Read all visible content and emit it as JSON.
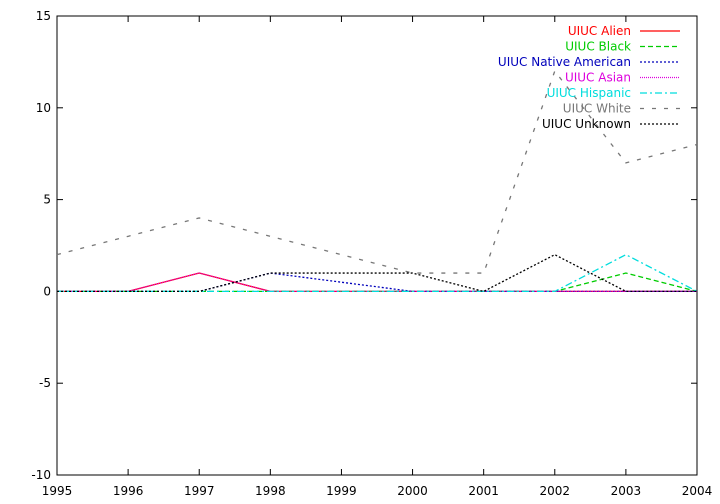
{
  "chart_data": {
    "type": "line",
    "x": [
      1995,
      1996,
      1997,
      1998,
      1999,
      2000,
      2001,
      2002,
      2003,
      2004
    ],
    "xlim": [
      1995,
      2004
    ],
    "ylim": [
      -10,
      15
    ],
    "xticks": [
      "1995",
      "1996",
      "1997",
      "1998",
      "1999",
      "2000",
      "2001",
      "2002",
      "2003",
      "2004"
    ],
    "yticks": [
      "-10",
      "-5",
      "0",
      "5",
      "10",
      "15"
    ],
    "grid": false,
    "legend_position": "top-right",
    "series": [
      {
        "name": "UIUC Alien",
        "color": "#ff0000",
        "dash": "solid",
        "values": [
          0,
          0,
          1,
          0,
          0,
          0,
          0,
          0,
          0,
          0
        ]
      },
      {
        "name": "UIUC Black",
        "color": "#00cc00",
        "dash": "dashed",
        "values": [
          0,
          0,
          0,
          0,
          0,
          0,
          0,
          0,
          1,
          0
        ]
      },
      {
        "name": "UIUC Native American",
        "color": "#0000bb",
        "dash": "dotted",
        "values": [
          0,
          0,
          0,
          1,
          0.5,
          0,
          0,
          0,
          0,
          0
        ]
      },
      {
        "name": "UIUC Asian",
        "color": "#dd00dd",
        "dash": "dotted-fine",
        "values": [
          0,
          0,
          1,
          0,
          0,
          0,
          0,
          0,
          0,
          0
        ]
      },
      {
        "name": "UIUC Hispanic",
        "color": "#00dddd",
        "dash": "dash-dot",
        "values": [
          0,
          0,
          0,
          0,
          0,
          0,
          0,
          0,
          2,
          0
        ]
      },
      {
        "name": "UIUC White",
        "color": "#777777",
        "dash": "sparse-dash",
        "values": [
          2,
          3,
          4,
          3,
          2,
          1,
          1,
          12,
          7,
          8
        ]
      },
      {
        "name": "UIUC Unknown",
        "color": "#000000",
        "dash": "dotted",
        "values": [
          0,
          0,
          0,
          1,
          1,
          1,
          0,
          2,
          0,
          0
        ]
      }
    ]
  }
}
